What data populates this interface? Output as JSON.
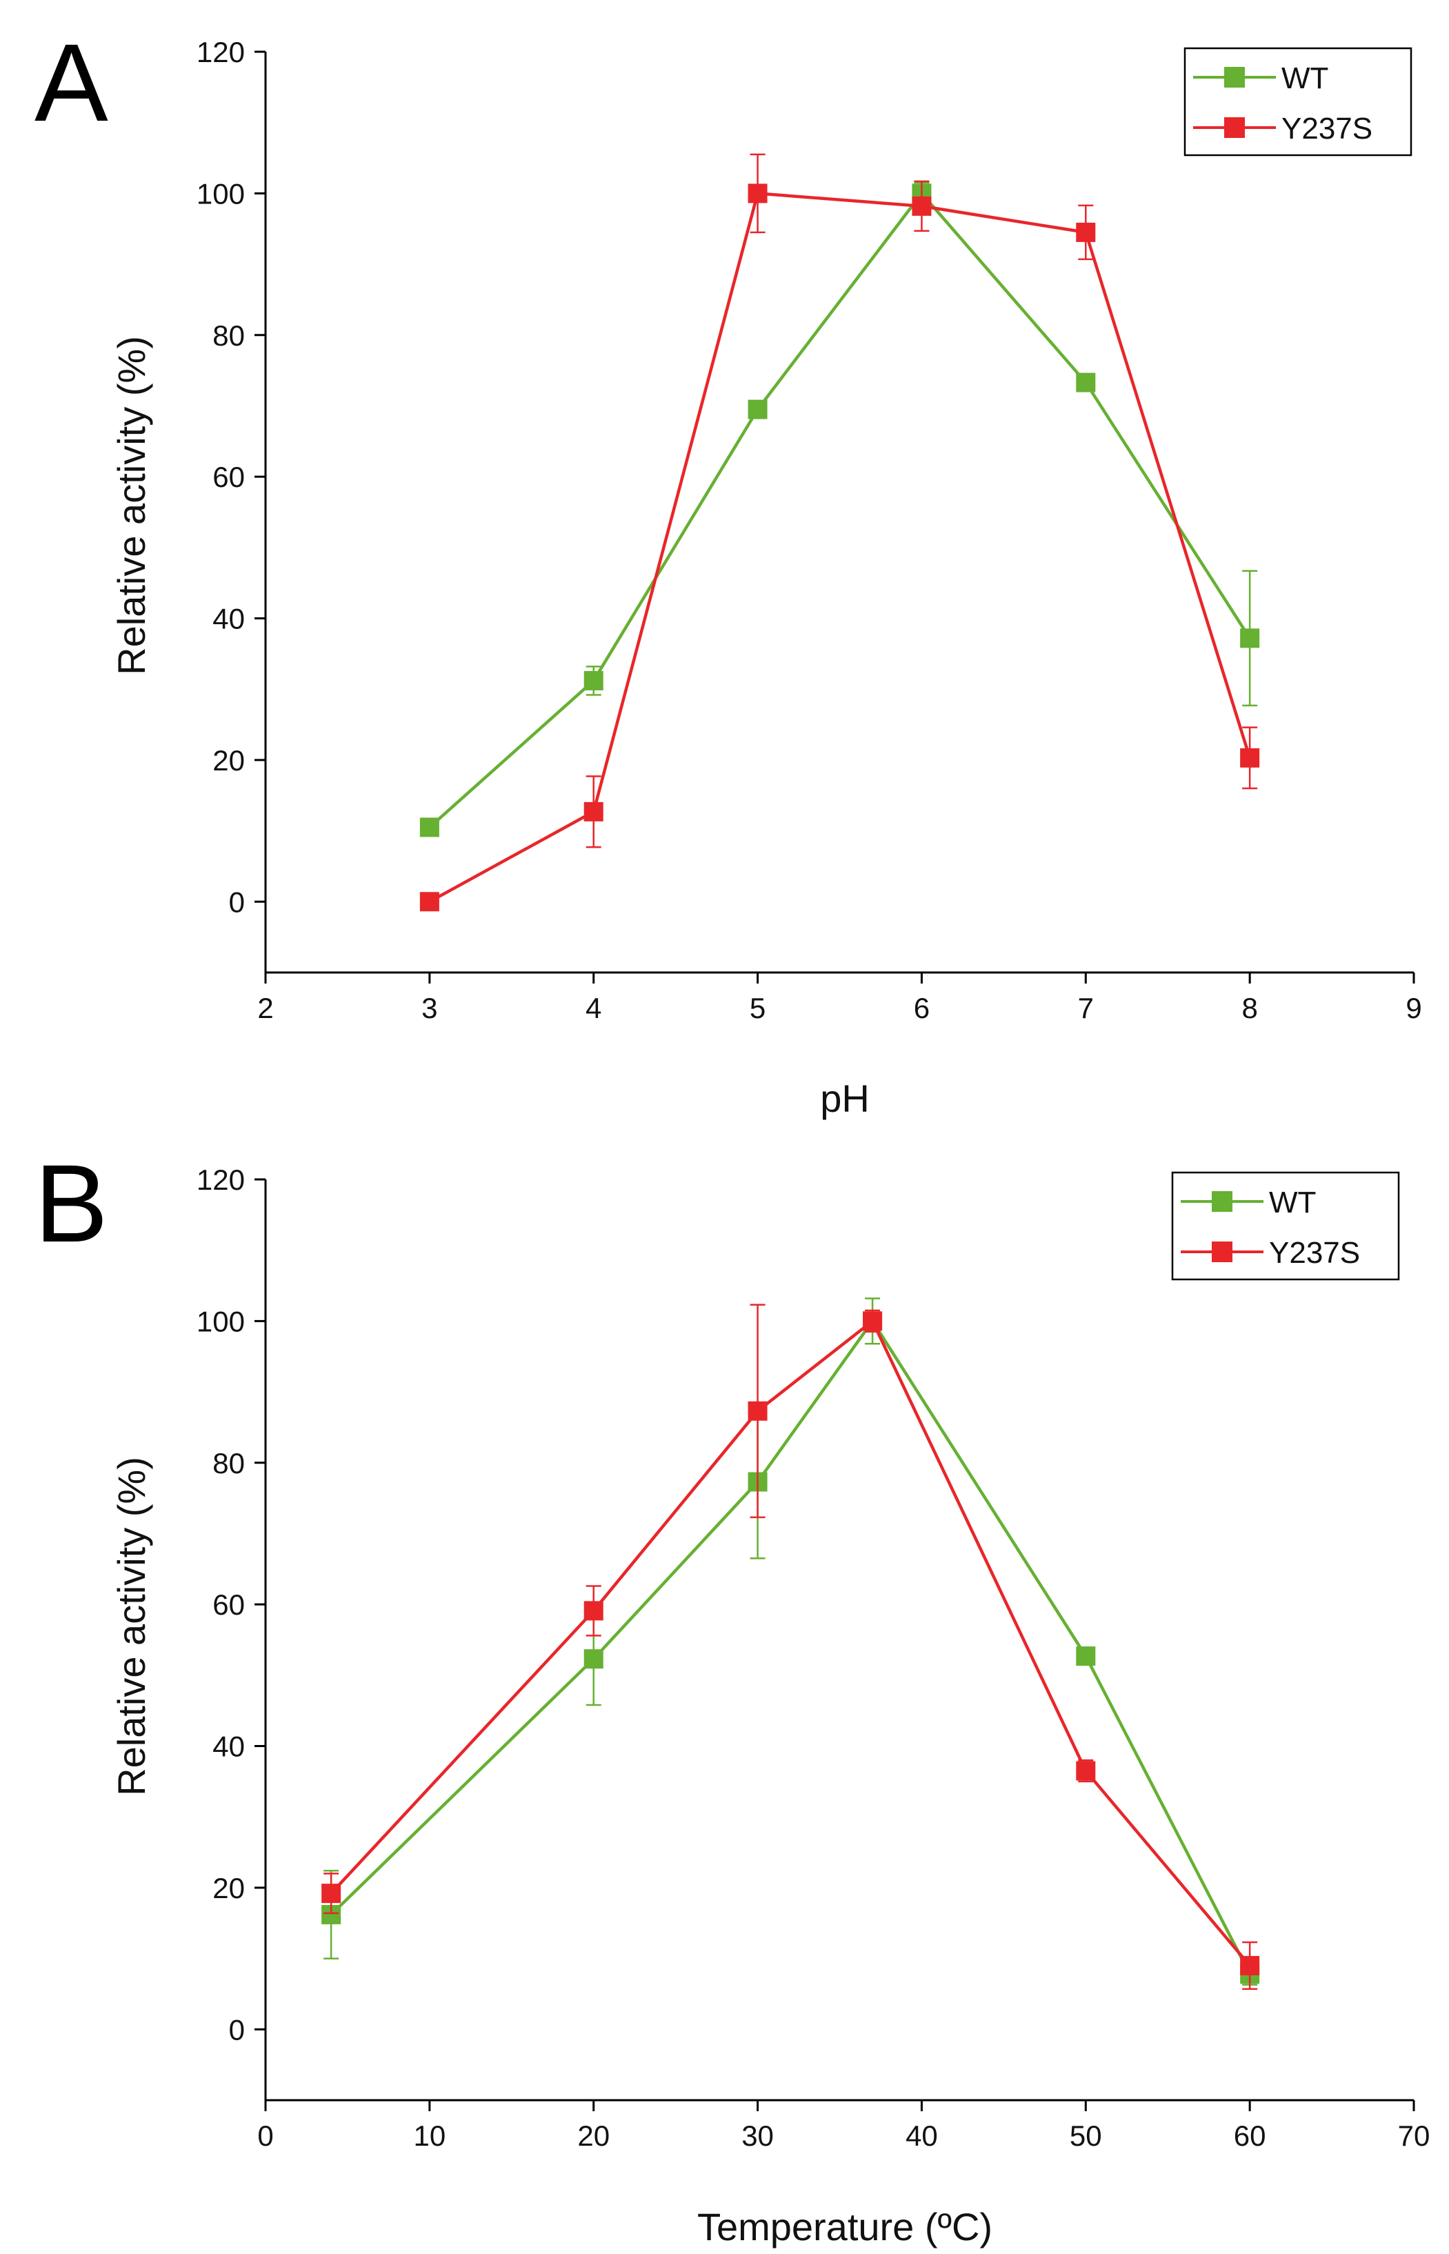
{
  "colors": {
    "wt": "#66b032",
    "y237s": "#e8262a",
    "axis": "#000000"
  },
  "chart_data": [
    {
      "type": "line",
      "panel_letter": "A",
      "title": "",
      "xlabel": "pH",
      "ylabel": "Relative activity (%)",
      "xlim": [
        2,
        9
      ],
      "ylim": [
        -10,
        120
      ],
      "xticks": [
        2,
        3,
        4,
        5,
        6,
        7,
        8,
        9
      ],
      "yticks": [
        0,
        20,
        40,
        60,
        80,
        100,
        120
      ],
      "legend_position": "top-right",
      "series": [
        {
          "name": "WT",
          "color": "#66b032",
          "x": [
            3,
            4,
            5,
            6,
            7,
            8
          ],
          "values": [
            10.5,
            31.2,
            69.5,
            100,
            73.3,
            37.2
          ],
          "errors": [
            0.5,
            2.0,
            1.0,
            1.5,
            1.0,
            9.5
          ]
        },
        {
          "name": "Y237S",
          "color": "#e8262a",
          "x": [
            3,
            4,
            5,
            6,
            7,
            8
          ],
          "values": [
            0,
            12.7,
            100,
            98.2,
            94.5,
            20.3
          ],
          "errors": [
            0.3,
            5.0,
            5.5,
            3.5,
            3.8,
            4.3
          ]
        }
      ]
    },
    {
      "type": "line",
      "panel_letter": "B",
      "title": "",
      "xlabel": "Temperature (ºC)",
      "ylabel": "Relative activity (%)",
      "xlim": [
        0,
        70
      ],
      "ylim": [
        -10,
        120
      ],
      "xticks": [
        0,
        10,
        20,
        30,
        40,
        50,
        60,
        70
      ],
      "yticks": [
        0,
        20,
        40,
        60,
        80,
        100,
        120
      ],
      "legend_position": "top-right",
      "series": [
        {
          "name": "WT",
          "color": "#66b032",
          "x": [
            4,
            20,
            30,
            37,
            50,
            60
          ],
          "values": [
            16.2,
            52.3,
            77.3,
            100,
            52.7,
            7.8
          ],
          "errors": [
            6.2,
            6.5,
            10.8,
            3.2,
            0.8,
            1.5
          ]
        },
        {
          "name": "Y237S",
          "color": "#e8262a",
          "x": [
            4,
            20,
            30,
            37,
            50,
            60
          ],
          "values": [
            19.2,
            59.1,
            87.3,
            100,
            36.5,
            9.0
          ],
          "errors": [
            2.8,
            3.5,
            15.0,
            1.5,
            1.5,
            3.3
          ]
        }
      ]
    }
  ]
}
